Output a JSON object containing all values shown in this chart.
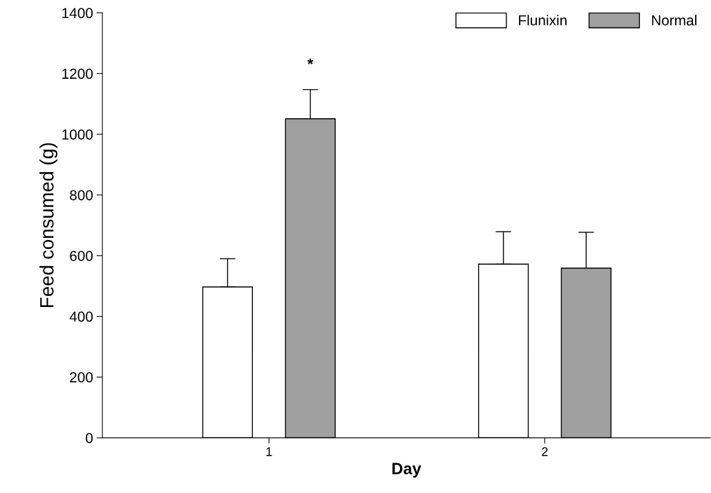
{
  "chart_data": {
    "type": "bar",
    "xlabel": "Day",
    "ylabel": "Feed consumed (g)",
    "categories": [
      "1",
      "2"
    ],
    "series": [
      {
        "name": "Flunixin",
        "color": "#ffffff",
        "values": [
          497,
          572
        ],
        "errors": [
          [
            497,
            590
          ],
          [
            572,
            679
          ]
        ]
      },
      {
        "name": "Normal",
        "color": "#a0a0a0",
        "values": [
          1051,
          559
        ],
        "errors": [
          [
            1051,
            1147
          ],
          [
            559,
            677
          ]
        ]
      }
    ],
    "ylim": [
      0,
      1400
    ],
    "yticks": [
      0,
      200,
      400,
      600,
      800,
      1000,
      1200,
      1400
    ],
    "annotations": [
      "*"
    ],
    "legend": "top right",
    "grid": false
  }
}
